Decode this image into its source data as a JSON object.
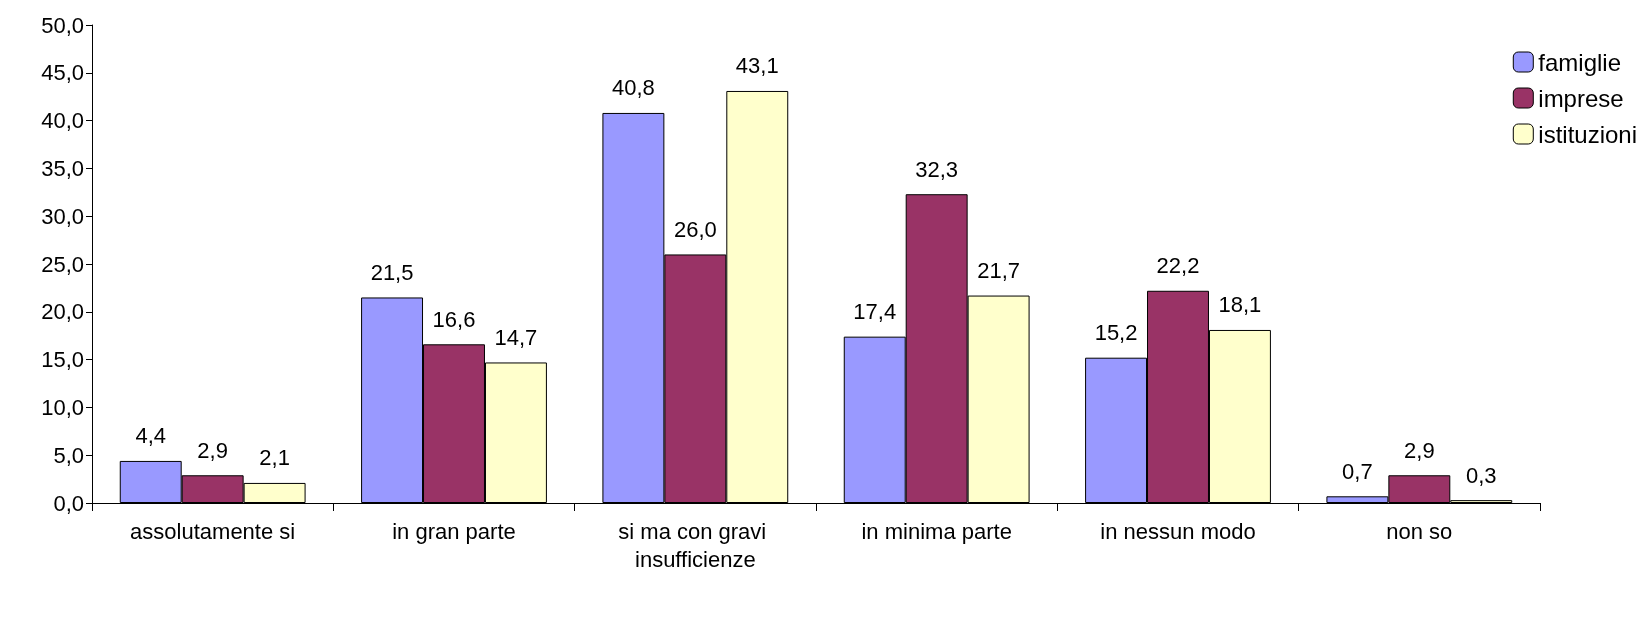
{
  "chart_data": {
    "type": "bar",
    "categories": [
      "assolutamente si",
      "in gran parte",
      "si ma con gravi insufficienze",
      "in minima parte",
      "in nessun modo",
      "non so"
    ],
    "series": [
      {
        "name": "famiglie",
        "color": "#9999ff",
        "values": [
          4.4,
          21.5,
          40.8,
          17.4,
          15.2,
          0.7
        ],
        "value_labels": [
          "4,4",
          "21,5",
          "40,8",
          "17,4",
          "15,2",
          "0,7"
        ]
      },
      {
        "name": "imprese",
        "color": "#993366",
        "values": [
          2.9,
          16.6,
          26.0,
          32.3,
          22.2,
          2.9
        ],
        "value_labels": [
          "2,9",
          "16,6",
          "26,0",
          "32,3",
          "22,2",
          "2,9"
        ]
      },
      {
        "name": "istituzioni",
        "color": "#ffffcc",
        "values": [
          2.1,
          14.7,
          43.1,
          21.7,
          18.1,
          0.3
        ],
        "value_labels": [
          "2,1",
          "14,7",
          "43,1",
          "21,7",
          "18,1",
          "0,3"
        ]
      }
    ],
    "ylim": [
      0,
      50
    ],
    "yticks": [
      {
        "value": 0,
        "label": "0,0"
      },
      {
        "value": 5,
        "label": "5,0"
      },
      {
        "value": 10,
        "label": "10,0"
      },
      {
        "value": 15,
        "label": "15,0"
      },
      {
        "value": 20,
        "label": "20,0"
      },
      {
        "value": 25,
        "label": "25,0"
      },
      {
        "value": 30,
        "label": "30,0"
      },
      {
        "value": 35,
        "label": "35,0"
      },
      {
        "value": 40,
        "label": "40,0"
      },
      {
        "value": 45,
        "label": "45,0"
      },
      {
        "value": 50,
        "label": "50,0"
      }
    ],
    "grid": false,
    "legend": "top right"
  }
}
